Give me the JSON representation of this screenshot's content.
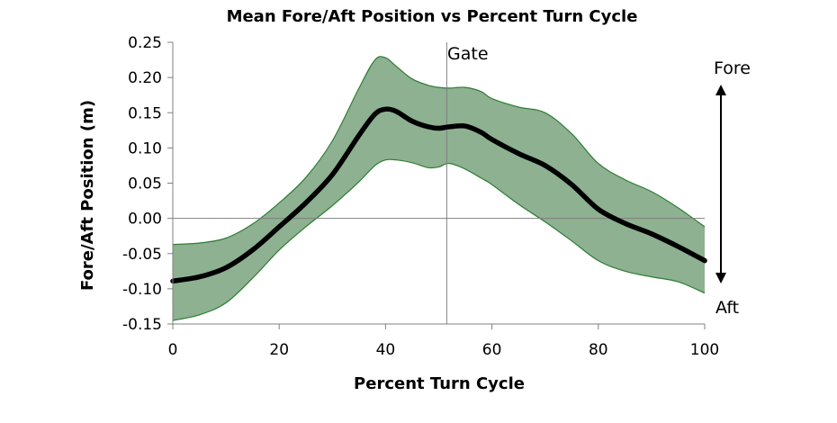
{
  "chart_data": {
    "type": "area",
    "title": "Mean Fore/Aft Position vs Percent Turn Cycle",
    "xlabel": "Percent Turn Cycle",
    "ylabel": "Fore/Aft Position (m)",
    "xlim": [
      0,
      100
    ],
    "ylim": [
      -0.15,
      0.25
    ],
    "x_ticks": [
      "0",
      "20",
      "40",
      "60",
      "80",
      "100"
    ],
    "y_ticks": [
      "-0.15",
      "-0.10",
      "-0.05",
      "0.00",
      "0.05",
      "0.10",
      "0.15",
      "0.20",
      "0.25"
    ],
    "grid": false,
    "series": [
      {
        "role": "mean",
        "color": "#000000",
        "x": [
          0,
          5,
          10,
          15,
          20,
          25,
          30,
          35,
          38,
          40,
          42,
          45,
          48,
          50,
          52,
          55,
          58,
          60,
          65,
          70,
          75,
          80,
          85,
          90,
          95,
          100
        ],
        "y": [
          -0.089,
          -0.083,
          -0.07,
          -0.045,
          -0.012,
          0.022,
          0.062,
          0.118,
          0.148,
          0.155,
          0.152,
          0.138,
          0.13,
          0.128,
          0.13,
          0.131,
          0.122,
          0.112,
          0.092,
          0.075,
          0.048,
          0.013,
          -0.007,
          -0.022,
          -0.04,
          -0.06
        ]
      },
      {
        "role": "upper-band",
        "color": "#2e7d32",
        "x": [
          0,
          5,
          10,
          15,
          20,
          25,
          30,
          35,
          38,
          40,
          42,
          45,
          48,
          50,
          52,
          55,
          58,
          60,
          65,
          70,
          75,
          80,
          85,
          90,
          95,
          100
        ],
        "y": [
          -0.037,
          -0.035,
          -0.028,
          -0.008,
          0.022,
          0.058,
          0.11,
          0.185,
          0.225,
          0.228,
          0.216,
          0.198,
          0.189,
          0.186,
          0.185,
          0.186,
          0.18,
          0.17,
          0.158,
          0.15,
          0.12,
          0.078,
          0.055,
          0.038,
          0.015,
          -0.012
        ]
      },
      {
        "role": "lower-band",
        "color": "#2e7d32",
        "x": [
          0,
          5,
          10,
          15,
          20,
          25,
          30,
          35,
          38,
          40,
          42,
          45,
          48,
          50,
          52,
          55,
          58,
          60,
          65,
          70,
          75,
          80,
          85,
          90,
          95,
          100
        ],
        "y": [
          -0.145,
          -0.137,
          -0.12,
          -0.085,
          -0.045,
          -0.012,
          0.018,
          0.052,
          0.075,
          0.083,
          0.083,
          0.079,
          0.072,
          0.073,
          0.078,
          0.07,
          0.057,
          0.048,
          0.02,
          -0.005,
          -0.032,
          -0.06,
          -0.075,
          -0.083,
          -0.09,
          -0.106
        ]
      }
    ],
    "band_fill": "#8db191",
    "annotations": {
      "gate_label": "Gate",
      "gate_x": 51.5,
      "fore_label": "Fore",
      "aft_label": "Aft"
    }
  }
}
